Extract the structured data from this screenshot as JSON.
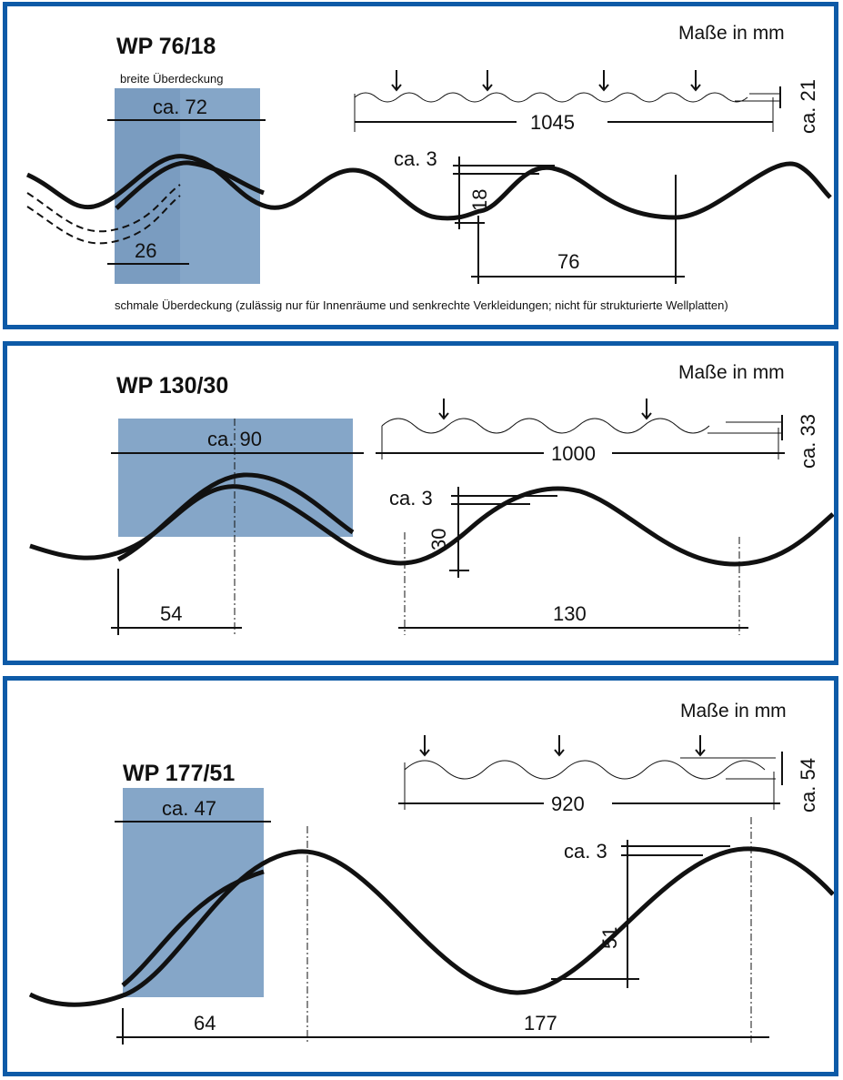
{
  "colors": {
    "frame": "#0d5aa7",
    "overlap": "#85a6c8",
    "ink": "#111111"
  },
  "panels": [
    {
      "title": "WP 76/18",
      "units": "Maße in mm",
      "overlap_wide_label": "breite Überdeckung",
      "overlap_wide": "ca. 72",
      "overlap_narrow": "26",
      "sheet_width": "1045",
      "profile_height_total": "ca. 21",
      "thickness": "ca. 3",
      "wave_height": "18",
      "pitch": "76",
      "note": "schmale Überdeckung (zulässig nur für Innenräume und senkrechte Verkleidungen; nicht für strukturierte Wellplatten)"
    },
    {
      "title": "WP 130/30",
      "units": "Maße in mm",
      "overlap_wide": "ca. 90",
      "sheet_width": "1000",
      "profile_height_total": "ca. 33",
      "thickness": "ca. 3",
      "wave_height": "30",
      "overlap_offset": "54",
      "pitch": "130"
    },
    {
      "title": "WP 177/51",
      "units": "Maße in mm",
      "overlap_wide": "ca. 47",
      "sheet_width": "920",
      "profile_height_total": "ca. 54",
      "thickness": "ca. 3",
      "wave_height": "51",
      "overlap_offset": "64",
      "pitch": "177"
    }
  ]
}
